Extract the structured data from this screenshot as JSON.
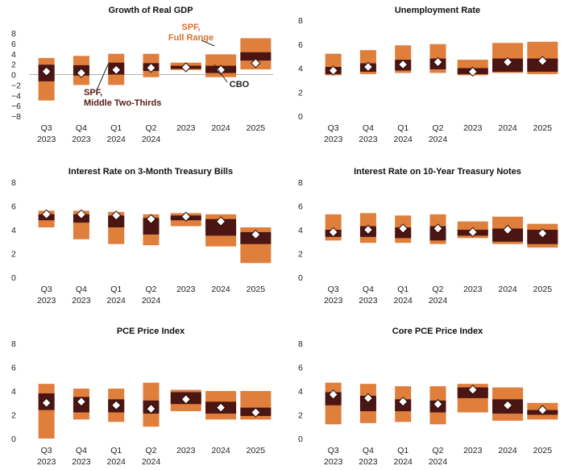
{
  "chart_data": [
    {
      "type": "range-bar",
      "title": "Growth of Real GDP",
      "ylim": [
        -8,
        8
      ],
      "yticks": [
        -8,
        -6,
        -4,
        -2,
        0,
        2,
        4,
        6,
        8
      ],
      "categories": [
        "Q3\n2023",
        "Q4\n2023",
        "Q1\n2024",
        "Q2\n2024",
        "2023",
        "2024",
        "2025"
      ],
      "series": [
        {
          "name": "SPF, Full Range",
          "ranges": [
            [
              -5,
              3.2
            ],
            [
              -2,
              3.6
            ],
            [
              -2,
              4
            ],
            [
              -0.5,
              4
            ],
            [
              0.9,
              2.3
            ],
            [
              -0.5,
              3.9
            ],
            [
              1,
              7
            ]
          ]
        },
        {
          "name": "SPF, Middle Two-Thirds",
          "ranges": [
            [
              -1.3,
              1.9
            ],
            [
              -0.2,
              1.8
            ],
            [
              0,
              2.3
            ],
            [
              0.7,
              2.2
            ],
            [
              1.1,
              1.7
            ],
            [
              0.3,
              1.7
            ],
            [
              2.7,
              4.3
            ]
          ]
        },
        {
          "name": "CBO",
          "values": [
            0.6,
            0.3,
            0.9,
            1.3,
            1.4,
            0.9,
            2.2
          ]
        }
      ],
      "annotations": {
        "full_range": [
          "SPF,",
          "Full Range"
        ],
        "middle": [
          "SPF,",
          "Middle Two-Thirds"
        ],
        "cbo": "CBO"
      }
    },
    {
      "type": "range-bar",
      "title": "Unemployment Rate",
      "ylim": [
        0,
        8
      ],
      "yticks": [
        0,
        2,
        4,
        6,
        8
      ],
      "categories": [
        "Q3\n2023",
        "Q4\n2023",
        "Q1\n2024",
        "Q2\n2024",
        "2023",
        "2024",
        "2025"
      ],
      "series": [
        {
          "name": "SPF, Full Range",
          "ranges": [
            [
              3.4,
              5.2
            ],
            [
              3.5,
              5.5
            ],
            [
              3.6,
              5.9
            ],
            [
              3.6,
              6
            ],
            [
              3.4,
              4.7
            ],
            [
              3.6,
              6.1
            ],
            [
              3.5,
              6.2
            ]
          ]
        },
        {
          "name": "SPF, Middle Two-Thirds",
          "ranges": [
            [
              3.5,
              4.1
            ],
            [
              3.7,
              4.4
            ],
            [
              3.8,
              4.7
            ],
            [
              3.9,
              4.8
            ],
            [
              3.5,
              4
            ],
            [
              3.7,
              4.8
            ],
            [
              3.7,
              4.8
            ]
          ]
        },
        {
          "name": "CBO",
          "values": [
            3.8,
            4.1,
            4.3,
            4.5,
            3.7,
            4.5,
            4.6
          ]
        }
      ]
    },
    {
      "type": "range-bar",
      "title": "Interest Rate on 3-Month Treasury Bills",
      "ylim": [
        0,
        8
      ],
      "yticks": [
        0,
        2,
        4,
        6,
        8
      ],
      "categories": [
        "Q3\n2023",
        "Q4\n2023",
        "Q1\n2024",
        "Q2\n2024",
        "2023",
        "2024",
        "2025"
      ],
      "series": [
        {
          "name": "SPF, Full Range",
          "ranges": [
            [
              4.2,
              5.6
            ],
            [
              3.2,
              5.6
            ],
            [
              2.8,
              5.5
            ],
            [
              2.7,
              5.3
            ],
            [
              4.3,
              5.4
            ],
            [
              2.6,
              5.3
            ],
            [
              1.2,
              4.2
            ]
          ]
        },
        {
          "name": "SPF, Middle Two-Thirds",
          "ranges": [
            [
              4.8,
              5.3
            ],
            [
              4.6,
              5.3
            ],
            [
              4.2,
              5.2
            ],
            [
              3.6,
              5
            ],
            [
              4.8,
              5.2
            ],
            [
              3.5,
              4.9
            ],
            [
              2.8,
              3.8
            ]
          ]
        },
        {
          "name": "CBO",
          "values": [
            5.3,
            5.3,
            5.2,
            4.9,
            5.1,
            4.7,
            3.6
          ]
        }
      ]
    },
    {
      "type": "range-bar",
      "title": "Interest Rate on 10-Year Treasury Notes",
      "ylim": [
        0,
        8
      ],
      "yticks": [
        0,
        2,
        4,
        6,
        8
      ],
      "categories": [
        "Q3\n2023",
        "Q4\n2023",
        "Q1\n2024",
        "Q2\n2024",
        "2023",
        "2024",
        "2025"
      ],
      "series": [
        {
          "name": "SPF, Full Range",
          "ranges": [
            [
              3.1,
              5.3
            ],
            [
              2.9,
              5.4
            ],
            [
              2.9,
              5.2
            ],
            [
              2.8,
              5.3
            ],
            [
              3.3,
              4.7
            ],
            [
              2.8,
              5.1
            ],
            [
              2.5,
              4.5
            ]
          ]
        },
        {
          "name": "SPF, Middle Two-Thirds",
          "ranges": [
            [
              3.4,
              4
            ],
            [
              3.4,
              4.3
            ],
            [
              3.3,
              4.2
            ],
            [
              3.1,
              4.3
            ],
            [
              3.5,
              4
            ],
            [
              3,
              4.1
            ],
            [
              2.8,
              4
            ]
          ]
        },
        {
          "name": "CBO",
          "values": [
            3.8,
            4,
            4.1,
            4.1,
            3.8,
            4,
            3.7
          ]
        }
      ]
    },
    {
      "type": "range-bar",
      "title": "PCE Price Index",
      "ylim": [
        0,
        8
      ],
      "yticks": [
        0,
        2,
        4,
        6,
        8
      ],
      "categories": [
        "Q3\n2023",
        "Q4\n2023",
        "Q1\n2024",
        "Q2\n2024",
        "2023",
        "2024",
        "2025"
      ],
      "series": [
        {
          "name": "SPF, Full Range",
          "ranges": [
            [
              0,
              4.6
            ],
            [
              1.6,
              4.2
            ],
            [
              1.4,
              4.2
            ],
            [
              1,
              4.7
            ],
            [
              2.3,
              4.1
            ],
            [
              1.6,
              4
            ],
            [
              1.6,
              4
            ]
          ]
        },
        {
          "name": "SPF, Middle Two-Thirds",
          "ranges": [
            [
              2.4,
              3.8
            ],
            [
              2.2,
              3.5
            ],
            [
              2.2,
              3.3
            ],
            [
              2.1,
              3.2
            ],
            [
              2.9,
              3.9
            ],
            [
              2.1,
              3.1
            ],
            [
              1.9,
              2.6
            ]
          ]
        },
        {
          "name": "CBO",
          "values": [
            3,
            3.1,
            2.8,
            2.5,
            3.3,
            2.6,
            2.2
          ]
        }
      ]
    },
    {
      "type": "range-bar",
      "title": "Core PCE Price Index",
      "ylim": [
        0,
        8
      ],
      "yticks": [
        0,
        2,
        4,
        6,
        8
      ],
      "categories": [
        "Q3\n2023",
        "Q4\n2023",
        "Q1\n2024",
        "Q2\n2024",
        "2023",
        "2024",
        "2025"
      ],
      "series": [
        {
          "name": "SPF, Full Range",
          "ranges": [
            [
              1.2,
              4.7
            ],
            [
              1.3,
              4.6
            ],
            [
              1.4,
              4.4
            ],
            [
              1.2,
              4.4
            ],
            [
              2.2,
              4.6
            ],
            [
              1.5,
              4.3
            ],
            [
              1.6,
              3
            ]
          ]
        },
        {
          "name": "SPF, Middle Two-Thirds",
          "ranges": [
            [
              2.8,
              3.9
            ],
            [
              2.3,
              3.6
            ],
            [
              2.3,
              3.3
            ],
            [
              2.2,
              3.2
            ],
            [
              3.4,
              4.3
            ],
            [
              2.1,
              3.3
            ],
            [
              2,
              2.4
            ]
          ]
        },
        {
          "name": "CBO",
          "values": [
            3.7,
            3.4,
            3.1,
            2.9,
            4.1,
            2.8,
            2.4
          ]
        }
      ]
    }
  ],
  "colors": {
    "full_range": "#E07E3C",
    "middle": "#4A1512",
    "cbo_fill": "#ffffff",
    "cbo_stroke": "#2a0a08",
    "full_range_label": "#D9712E",
    "middle_label": "#5A1A14",
    "axis": "#bbbbbb"
  }
}
